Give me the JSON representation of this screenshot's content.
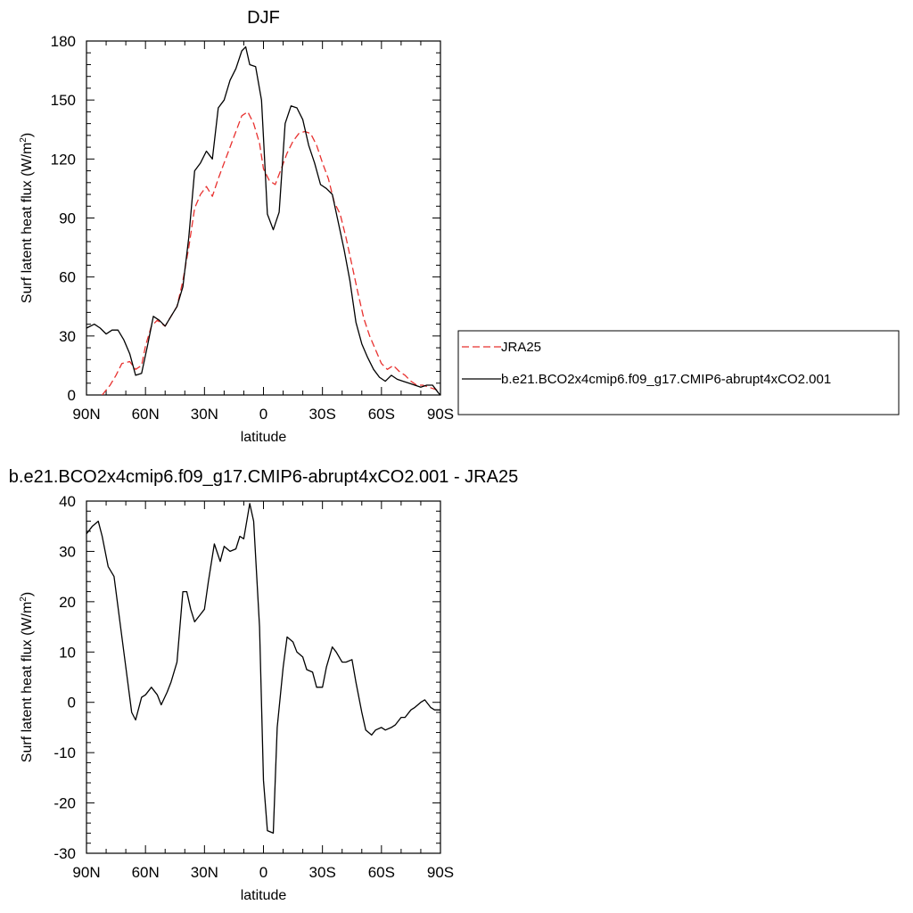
{
  "chart_data": [
    {
      "type": "line",
      "title": "DJF",
      "xlabel": "latitude",
      "ylabel": "Surf latent heat flux (W/m",
      "ylabel_sup": "2",
      "ylabel_close": ")",
      "xlim": [
        90,
        -90
      ],
      "ylim": [
        0,
        180
      ],
      "yticks": [
        0,
        30,
        60,
        90,
        120,
        150,
        180
      ],
      "xticks": [
        90,
        60,
        30,
        0,
        -30,
        -60,
        -90
      ],
      "xticklabels": [
        "90N",
        "60N",
        "30N",
        "0",
        "30S",
        "60S",
        "90S"
      ],
      "legend": {
        "placement": "right",
        "entries": [
          "JRA25",
          "b.e21.BCO2x4cmip6.f09_g17.CMIP6-abrupt4xCO2.001"
        ]
      },
      "series": [
        {
          "name": "JRA25",
          "color": "#e8312f",
          "dash": true,
          "x": [
            82,
            78,
            75,
            72,
            68,
            65,
            62,
            60,
            57,
            54,
            50,
            47,
            44,
            41,
            38,
            35,
            32,
            29,
            26,
            23,
            20,
            17,
            14,
            11,
            8,
            5,
            2,
            0,
            -3,
            -6,
            -9,
            -12,
            -15,
            -18,
            -21,
            -24,
            -27,
            -30,
            -33,
            -36,
            -39,
            -42,
            -45,
            -48,
            -51,
            -54,
            -57,
            -60,
            -63,
            -66,
            -69,
            -72,
            -75,
            -78,
            -81,
            -84,
            -87,
            -90
          ],
          "y": [
            0,
            5,
            10,
            16,
            17,
            13,
            15,
            25,
            35,
            38,
            35,
            40,
            45,
            58,
            75,
            95,
            102,
            106,
            101,
            110,
            118,
            126,
            134,
            142,
            144,
            138,
            128,
            115,
            109,
            107,
            115,
            123,
            129,
            133,
            134,
            133,
            127,
            118,
            110,
            98,
            92,
            80,
            66,
            52,
            39,
            30,
            23,
            16,
            13,
            15,
            12,
            10,
            7,
            5,
            5,
            4,
            3,
            2
          ]
        },
        {
          "name": "b.e21.BCO2x4cmip6.f09_g17.CMIP6-abrupt4xCO2.001",
          "color": "#000000",
          "dash": false,
          "x": [
            90,
            86,
            83,
            80,
            77,
            74,
            71,
            68,
            65,
            62,
            59,
            56,
            53,
            50,
            47,
            44,
            41,
            38,
            35,
            32,
            29,
            26,
            23,
            20,
            17,
            14,
            11,
            9,
            7,
            4,
            1,
            0,
            -2,
            -5,
            -8,
            -11,
            -14,
            -17,
            -20,
            -23,
            -26,
            -29,
            -32,
            -35,
            -38,
            -41,
            -44,
            -47,
            -50,
            -53,
            -56,
            -59,
            -62,
            -65,
            -68,
            -71,
            -74,
            -77,
            -80,
            -83,
            -86,
            -89,
            -90
          ],
          "y": [
            34,
            36,
            34,
            31,
            33,
            33,
            28,
            21,
            10,
            11,
            25,
            40,
            38,
            35,
            40,
            45,
            55,
            80,
            114,
            118,
            124,
            120,
            146,
            150,
            160,
            166,
            175,
            177,
            168,
            167,
            150,
            131,
            92,
            84,
            93,
            138,
            147,
            146,
            140,
            127,
            118,
            107,
            105,
            102,
            88,
            74,
            58,
            37,
            26,
            19,
            13,
            9,
            7,
            10,
            8,
            7,
            6,
            5,
            4,
            5,
            5,
            1,
            0
          ]
        }
      ]
    },
    {
      "type": "line",
      "title": "b.e21.BCO2x4cmip6.f09_g17.CMIP6-abrupt4xCO2.001 - JRA25",
      "xlabel": "latitude",
      "ylabel": "Surf latent heat flux (W/m",
      "ylabel_sup": "2",
      "ylabel_close": ")",
      "xlim": [
        90,
        -90
      ],
      "ylim": [
        -30,
        40
      ],
      "yticks": [
        -30,
        -20,
        -10,
        0,
        10,
        20,
        30,
        40
      ],
      "xticks": [
        90,
        60,
        30,
        0,
        -30,
        -60,
        -90
      ],
      "xticklabels": [
        "90N",
        "60N",
        "30N",
        "0",
        "30S",
        "60S",
        "90S"
      ],
      "series": [
        {
          "color": "#000000",
          "dash": false,
          "x": [
            90,
            87,
            84,
            82,
            79,
            76,
            73,
            70,
            67,
            65,
            62,
            60,
            57,
            54,
            52,
            49,
            47,
            44,
            41,
            39,
            37,
            35,
            32,
            30,
            28,
            25,
            22,
            20,
            17,
            14,
            12,
            10,
            7,
            5,
            2,
            0,
            -2,
            -5,
            -7,
            -10,
            -12,
            -15,
            -17,
            -20,
            -22,
            -25,
            -27,
            -30,
            -32,
            -35,
            -37,
            -40,
            -42,
            -45,
            -47,
            -50,
            -52,
            -55,
            -57,
            -60,
            -62,
            -65,
            -67,
            -70,
            -72,
            -75,
            -77,
            -80,
            -82,
            -85,
            -87,
            -90
          ],
          "y": [
            33.5,
            35,
            36,
            33,
            27,
            25,
            16,
            7,
            -2,
            -3.5,
            1,
            1.5,
            3,
            1.5,
            -0.5,
            2,
            4,
            8,
            22,
            22,
            18.5,
            16,
            17.5,
            18.5,
            24,
            31.5,
            28,
            31,
            30,
            30.5,
            33,
            32.5,
            39.5,
            36,
            15,
            -15.5,
            -25.5,
            -26,
            -5,
            7,
            13,
            12,
            10,
            9,
            6.5,
            6,
            3,
            3,
            7,
            11,
            10,
            8,
            8,
            8.5,
            4,
            -2,
            -5.5,
            -6.5,
            -5.5,
            -5,
            -5.5,
            -5,
            -4.5,
            -3,
            -3,
            -1.5,
            -1,
            0,
            0.5,
            -1,
            -1.5,
            -1.5
          ]
        }
      ]
    }
  ]
}
